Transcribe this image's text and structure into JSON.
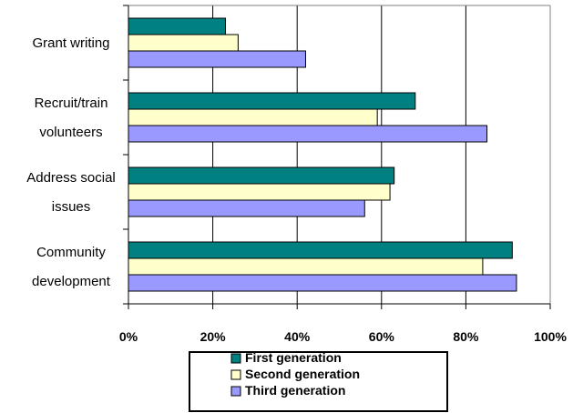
{
  "chart_data": {
    "type": "bar",
    "orientation": "horizontal",
    "categories": [
      [
        "Grant writing"
      ],
      [
        "Recruit/train",
        "volunteers"
      ],
      [
        "Address social",
        "issues"
      ],
      [
        "Community",
        "development"
      ]
    ],
    "series": [
      {
        "name": "First generation",
        "color": "#008080",
        "values": [
          0.23,
          0.68,
          0.63,
          0.91
        ]
      },
      {
        "name": "Second generation",
        "color": "#FFFFCC",
        "values": [
          0.26,
          0.59,
          0.62,
          0.84
        ]
      },
      {
        "name": "Third generation",
        "color": "#9999FF",
        "values": [
          0.42,
          0.85,
          0.56,
          0.92
        ]
      }
    ],
    "xlim": [
      0,
      1
    ],
    "xticks": [
      {
        "value": 0,
        "label": "0%"
      },
      {
        "value": 0.2,
        "label": "20%"
      },
      {
        "value": 0.4,
        "label": "40%"
      },
      {
        "value": 0.6,
        "label": "60%"
      },
      {
        "value": 0.8,
        "label": "80%"
      },
      {
        "value": 1,
        "label": "100%"
      }
    ],
    "grid": true,
    "legend": "bottom",
    "title": "",
    "xlabel": "",
    "ylabel": ""
  }
}
